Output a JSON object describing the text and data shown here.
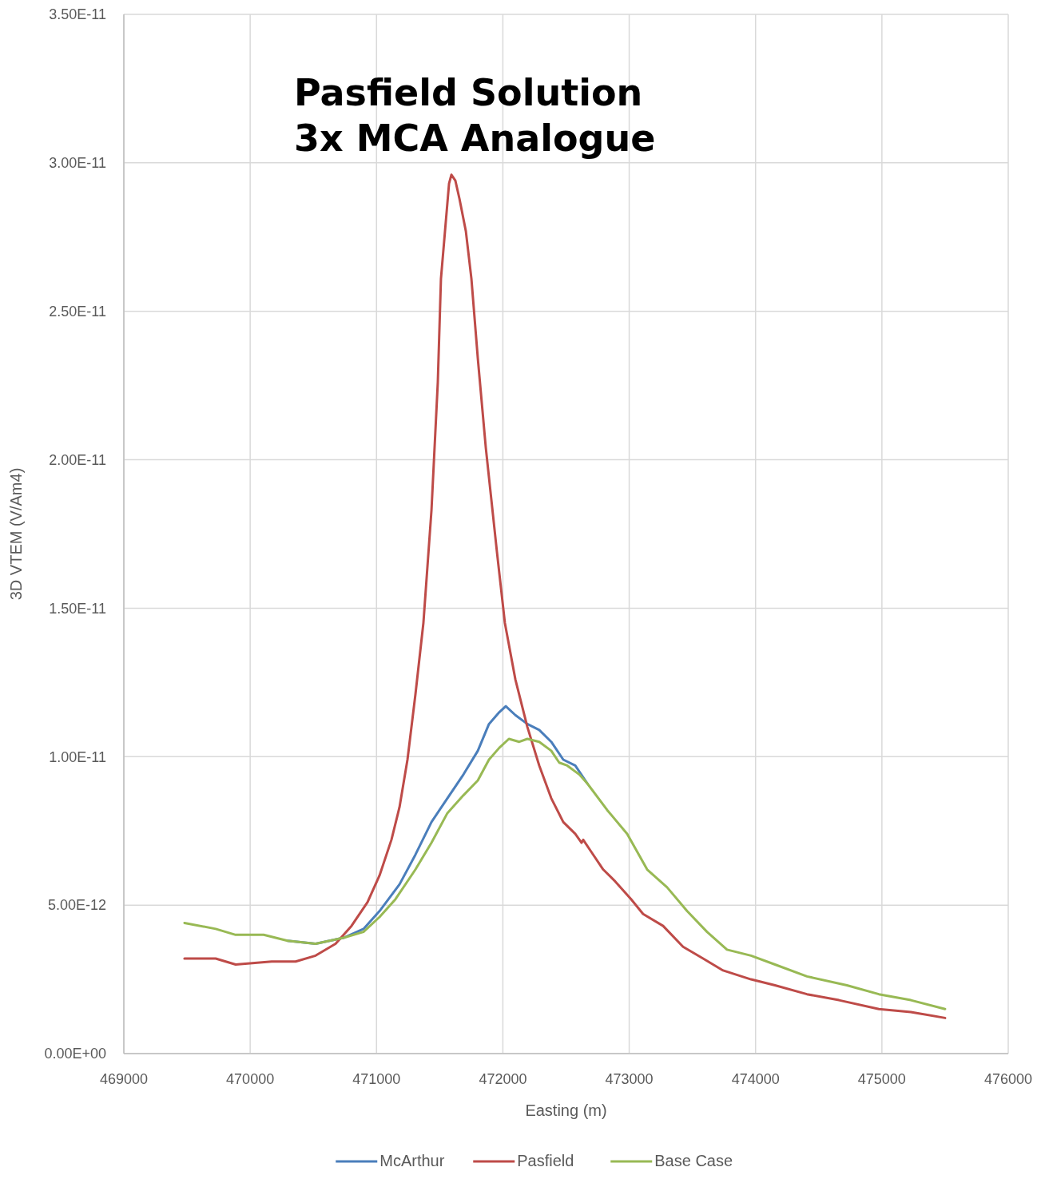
{
  "chart_data": {
    "type": "line",
    "title": "Pasfield Solution\n3x MCA Analogue",
    "xlabel": "Easting (m)",
    "ylabel": "3D VTEM (V/Am4)",
    "xlim": [
      469000,
      476000
    ],
    "xticks": [
      469000,
      470000,
      471000,
      472000,
      473000,
      474000,
      475000,
      476000
    ],
    "ylim": [
      0,
      3.5e-11
    ],
    "yticks": [
      {
        "value": 0,
        "label": "0.00E+00"
      },
      {
        "value": 5e-12,
        "label": "5.00E-12"
      },
      {
        "value": 1e-11,
        "label": "1.00E-11"
      },
      {
        "value": 1.5e-11,
        "label": "1.50E-11"
      },
      {
        "value": 2e-11,
        "label": "2.00E-11"
      },
      {
        "value": 2.5e-11,
        "label": "2.50E-11"
      },
      {
        "value": 3e-11,
        "label": "3.00E-11"
      },
      {
        "value": 3.5e-11,
        "label": "3.50E-11"
      }
    ],
    "grid": true,
    "legend": "bottom",
    "marker": "none",
    "line_style": "solid",
    "series": [
      {
        "name": "McArthur",
        "color": "#4a7ebb",
        "x": [
          470296,
          470518,
          470739,
          470897,
          471024,
          471182,
          471308,
          471435,
          471561,
          471688,
          471802,
          471890,
          471972,
          472023,
          472099,
          472194,
          472288,
          472383,
          472478,
          472573,
          472668
        ],
        "values": [
          3.8e-12,
          3.7e-12,
          3.9e-12,
          4.2e-12,
          4.8e-12,
          5.7e-12,
          6.7e-12,
          7.8e-12,
          8.6e-12,
          9.4e-12,
          1.02e-11,
          1.11e-11,
          1.15e-11,
          1.17e-11,
          1.14e-11,
          1.11e-11,
          1.09e-11,
          1.05e-11,
          9.9e-12,
          9.7e-12,
          9.1e-12
        ]
      },
      {
        "name": "Pasfield",
        "color": "#be4b48",
        "x": [
          469480,
          469727,
          469885,
          470170,
          470360,
          470518,
          470676,
          470802,
          470929,
          471024,
          471118,
          471182,
          471245,
          471308,
          471371,
          471435,
          471485,
          471510,
          471542,
          471574,
          471593,
          471624,
          471656,
          471707,
          471751,
          471802,
          471865,
          471953,
          472016,
          472099,
          472194,
          472288,
          472383,
          472478,
          472573,
          472623,
          472636,
          472699,
          472794,
          472889,
          473015,
          473110,
          473268,
          473426,
          473585,
          473743,
          473964,
          474154,
          474407,
          474660,
          474976,
          475229,
          475500
        ],
        "values": [
          3.2e-12,
          3.2e-12,
          3e-12,
          3.1e-12,
          3.1e-12,
          3.3e-12,
          3.7e-12,
          4.3e-12,
          5.1e-12,
          6e-12,
          7.2e-12,
          8.3e-12,
          9.9e-12,
          1.21e-11,
          1.45e-11,
          1.83e-11,
          2.26e-11,
          2.61e-11,
          2.77e-11,
          2.93e-11,
          2.96e-11,
          2.94e-11,
          2.88e-11,
          2.77e-11,
          2.61e-11,
          2.34e-11,
          2.04e-11,
          1.69e-11,
          1.45e-11,
          1.26e-11,
          1.1e-11,
          9.7e-12,
          8.6e-12,
          7.8e-12,
          7.4e-12,
          7.1e-12,
          7.2e-12,
          6.8e-12,
          6.2e-12,
          5.8e-12,
          5.2e-12,
          4.7e-12,
          4.3e-12,
          3.6e-12,
          3.2e-12,
          2.8e-12,
          2.5e-12,
          2.3e-12,
          2e-12,
          1.8e-12,
          1.5e-12,
          1.4e-12,
          1.2e-12
        ]
      },
      {
        "name": "Base Case",
        "color": "#98b954",
        "x": [
          469480,
          469727,
          469885,
          470107,
          470296,
          470518,
          470739,
          470897,
          471024,
          471150,
          471308,
          471435,
          471561,
          471688,
          471802,
          471890,
          471972,
          472048,
          472130,
          472194,
          472288,
          472383,
          472446,
          472510,
          472605,
          472668,
          472826,
          472984,
          473142,
          473300,
          473458,
          473616,
          473774,
          473964,
          474154,
          474407,
          474723,
          474976,
          475229,
          475500
        ],
        "values": [
          4.4e-12,
          4.2e-12,
          4e-12,
          4e-12,
          3.8e-12,
          3.7e-12,
          3.9e-12,
          4.1e-12,
          4.6e-12,
          5.2e-12,
          6.2e-12,
          7.1e-12,
          8.1e-12,
          8.7e-12,
          9.2e-12,
          9.9e-12,
          1.03e-11,
          1.06e-11,
          1.05e-11,
          1.06e-11,
          1.05e-11,
          1.02e-11,
          9.8e-12,
          9.7e-12,
          9.4e-12,
          9.1e-12,
          8.2e-12,
          7.4e-12,
          6.2e-12,
          5.6e-12,
          4.8e-12,
          4.1e-12,
          3.5e-12,
          3.3e-12,
          3e-12,
          2.6e-12,
          2.3e-12,
          2e-12,
          1.8e-12,
          1.5e-12
        ]
      }
    ]
  }
}
